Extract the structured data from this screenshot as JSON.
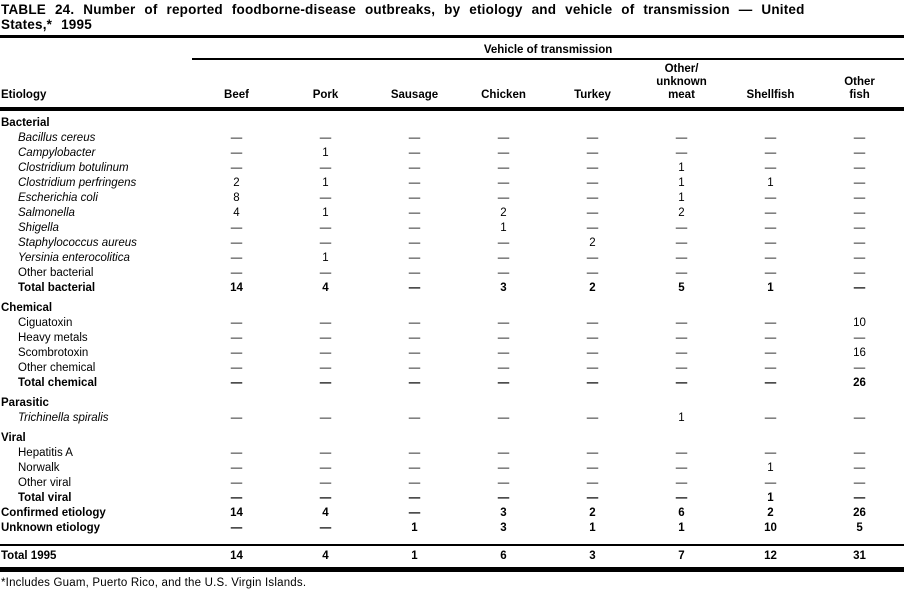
{
  "page": {
    "title": "TABLE 24. Number of reported foodborne-disease outbreaks, by etiology and vehicle of transmission — United\nStates,* 1995",
    "footnote": "*Includes Guam, Puerto Rico, and the U.S. Virgin Islands."
  },
  "table": {
    "spanner": "Vehicle of transmission",
    "stub_header": "Etiology",
    "columns": [
      "Beef",
      "Pork",
      "Sausage",
      "Chicken",
      "Turkey",
      "Other/\nunknown\nmeat",
      "Shellfish",
      "Other\nfish"
    ],
    "empty_cell": "—",
    "rows": [
      {
        "type": "section",
        "label": "Bacterial"
      },
      {
        "type": "species",
        "label": "Bacillus cereus",
        "values": [
          "—",
          "—",
          "—",
          "—",
          "—",
          "—",
          "—",
          "—"
        ]
      },
      {
        "type": "species",
        "label": "Campylobacter",
        "values": [
          "—",
          "1",
          "—",
          "—",
          "—",
          "—",
          "—",
          "—"
        ]
      },
      {
        "type": "species",
        "label": "Clostridium botulinum",
        "values": [
          "—",
          "—",
          "—",
          "—",
          "—",
          "1",
          "—",
          "—"
        ]
      },
      {
        "type": "species",
        "label": "Clostridium perfringens",
        "values": [
          "2",
          "1",
          "—",
          "—",
          "—",
          "1",
          "1",
          "—"
        ]
      },
      {
        "type": "species",
        "label": "Escherichia coli",
        "values": [
          "8",
          "—",
          "—",
          "—",
          "—",
          "1",
          "—",
          "—"
        ]
      },
      {
        "type": "species",
        "label": "Salmonella",
        "values": [
          "4",
          "1",
          "—",
          "2",
          "—",
          "2",
          "—",
          "—"
        ]
      },
      {
        "type": "species",
        "label": "Shigella",
        "values": [
          "—",
          "—",
          "—",
          "1",
          "—",
          "—",
          "—",
          "—"
        ]
      },
      {
        "type": "species",
        "label": "Staphylococcus aureus",
        "values": [
          "—",
          "—",
          "—",
          "—",
          "2",
          "—",
          "—",
          "—"
        ]
      },
      {
        "type": "species",
        "label": "Yersinia enterocolitica",
        "values": [
          "—",
          "1",
          "—",
          "—",
          "—",
          "—",
          "—",
          "—"
        ]
      },
      {
        "type": "item",
        "label": "Other bacterial",
        "values": [
          "—",
          "—",
          "—",
          "—",
          "—",
          "—",
          "—",
          "—"
        ]
      },
      {
        "type": "total",
        "label": "Total bacterial",
        "values": [
          "14",
          "4",
          "—",
          "3",
          "2",
          "5",
          "1",
          "—"
        ]
      },
      {
        "type": "section",
        "label": "Chemical"
      },
      {
        "type": "item",
        "label": "Ciguatoxin",
        "values": [
          "—",
          "—",
          "—",
          "—",
          "—",
          "—",
          "—",
          "10"
        ]
      },
      {
        "type": "item",
        "label": "Heavy metals",
        "values": [
          "—",
          "—",
          "—",
          "—",
          "—",
          "—",
          "—",
          "—"
        ]
      },
      {
        "type": "item",
        "label": "Scombrotoxin",
        "values": [
          "—",
          "—",
          "—",
          "—",
          "—",
          "—",
          "—",
          "16"
        ]
      },
      {
        "type": "item",
        "label": "Other chemical",
        "values": [
          "—",
          "—",
          "—",
          "—",
          "—",
          "—",
          "—",
          "—"
        ]
      },
      {
        "type": "total",
        "label": "Total chemical",
        "values": [
          "—",
          "—",
          "—",
          "—",
          "—",
          "—",
          "—",
          "26"
        ]
      },
      {
        "type": "section",
        "label": "Parasitic"
      },
      {
        "type": "species",
        "label": "Trichinella spiralis",
        "values": [
          "—",
          "—",
          "—",
          "—",
          "—",
          "1",
          "—",
          "—"
        ]
      },
      {
        "type": "section",
        "label": "Viral"
      },
      {
        "type": "item",
        "label": "Hepatitis A",
        "values": [
          "—",
          "—",
          "—",
          "—",
          "—",
          "—",
          "—",
          "—"
        ]
      },
      {
        "type": "item",
        "label": "Norwalk",
        "values": [
          "—",
          "—",
          "—",
          "—",
          "—",
          "—",
          "1",
          "—"
        ]
      },
      {
        "type": "item",
        "label": "Other viral",
        "values": [
          "—",
          "—",
          "—",
          "—",
          "—",
          "—",
          "—",
          "—"
        ]
      },
      {
        "type": "total",
        "label": "Total viral",
        "values": [
          "—",
          "—",
          "—",
          "—",
          "—",
          "—",
          "1",
          "—"
        ]
      },
      {
        "type": "summary",
        "label": "Confirmed etiology",
        "values": [
          "14",
          "4",
          "—",
          "3",
          "2",
          "6",
          "2",
          "26"
        ]
      },
      {
        "type": "summary",
        "label": "Unknown etiology",
        "values": [
          "—",
          "—",
          "1",
          "3",
          "1",
          "1",
          "10",
          "5"
        ]
      },
      {
        "type": "grand",
        "label": "Total 1995",
        "values": [
          "14",
          "4",
          "1",
          "6",
          "3",
          "7",
          "12",
          "31"
        ]
      }
    ]
  }
}
